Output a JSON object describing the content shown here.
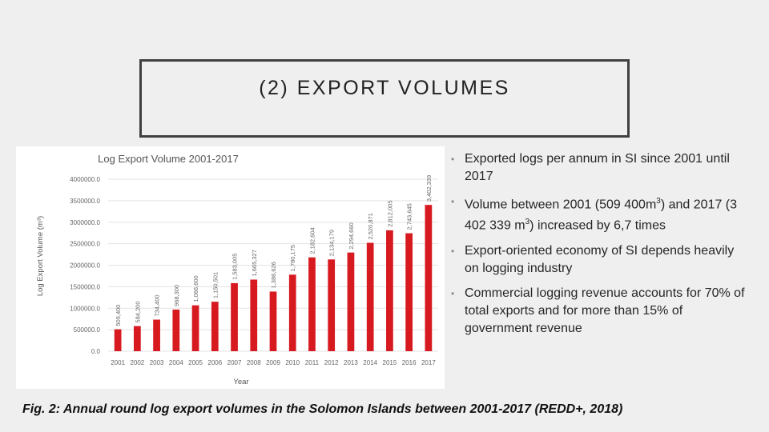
{
  "slide": {
    "title": "(2) EXPORT VOLUMES",
    "caption": "Fig. 2: Annual round log export volumes in the Solomon Islands between 2001-2017 (REDD+, 2018)"
  },
  "bullets": [
    {
      "text": "Exported logs per annum in SI since 2001 until 2017"
    },
    {
      "pre": "Volume between 2001 (509 400m",
      "sup1": "3",
      "mid": ") and 2017 (3 402 339 m",
      "sup2": "3",
      "post": ") increased by 6,7 times"
    },
    {
      "text": "Export-oriented economy of SI depends heavily on logging industry"
    },
    {
      "text": "Commercial logging revenue accounts for 70% of total exports and for more than 15% of government revenue"
    }
  ],
  "bullet_glyph": "•",
  "chart_data": {
    "type": "bar",
    "title": "Log Export Volume 2001-2017",
    "xlabel": "Year",
    "ylabel": "Log Export Volume (m³)",
    "categories": [
      "2001",
      "2002",
      "2003",
      "2004",
      "2005",
      "2006",
      "2007",
      "2008",
      "2009",
      "2010",
      "2011",
      "2012",
      "2013",
      "2014",
      "2015",
      "2016",
      "2017"
    ],
    "values": [
      509400,
      584200,
      734400,
      968300,
      1066600,
      1150501,
      1583005,
      1665327,
      1386626,
      1780175,
      2182604,
      2134179,
      2294660,
      2520871,
      2812005,
      2743645,
      3402339
    ],
    "data_labels": [
      "509,400",
      "584,200",
      "734,400",
      "968,300",
      "1,066,600",
      "1,150,501",
      "1,583,005",
      "1,665,327",
      "1,386,626",
      "1,780,175",
      "2,182,604",
      "2,134,179",
      "2,294,660",
      "2,520,871",
      "2,812,005",
      "2,743,645",
      "3,402,339"
    ],
    "y_ticks": [
      0,
      500000,
      1000000,
      1500000,
      2000000,
      2500000,
      3000000,
      3500000,
      4000000
    ],
    "y_tick_labels": [
      "0.0",
      "500000.0",
      "1000000.0",
      "1500000.0",
      "2000000.0",
      "2500000.0",
      "3000000.0",
      "3500000.0",
      "4000000.0"
    ],
    "ylim": [
      0,
      4000000
    ],
    "grid": true,
    "legend": "none",
    "bar_color": "#d71920"
  }
}
